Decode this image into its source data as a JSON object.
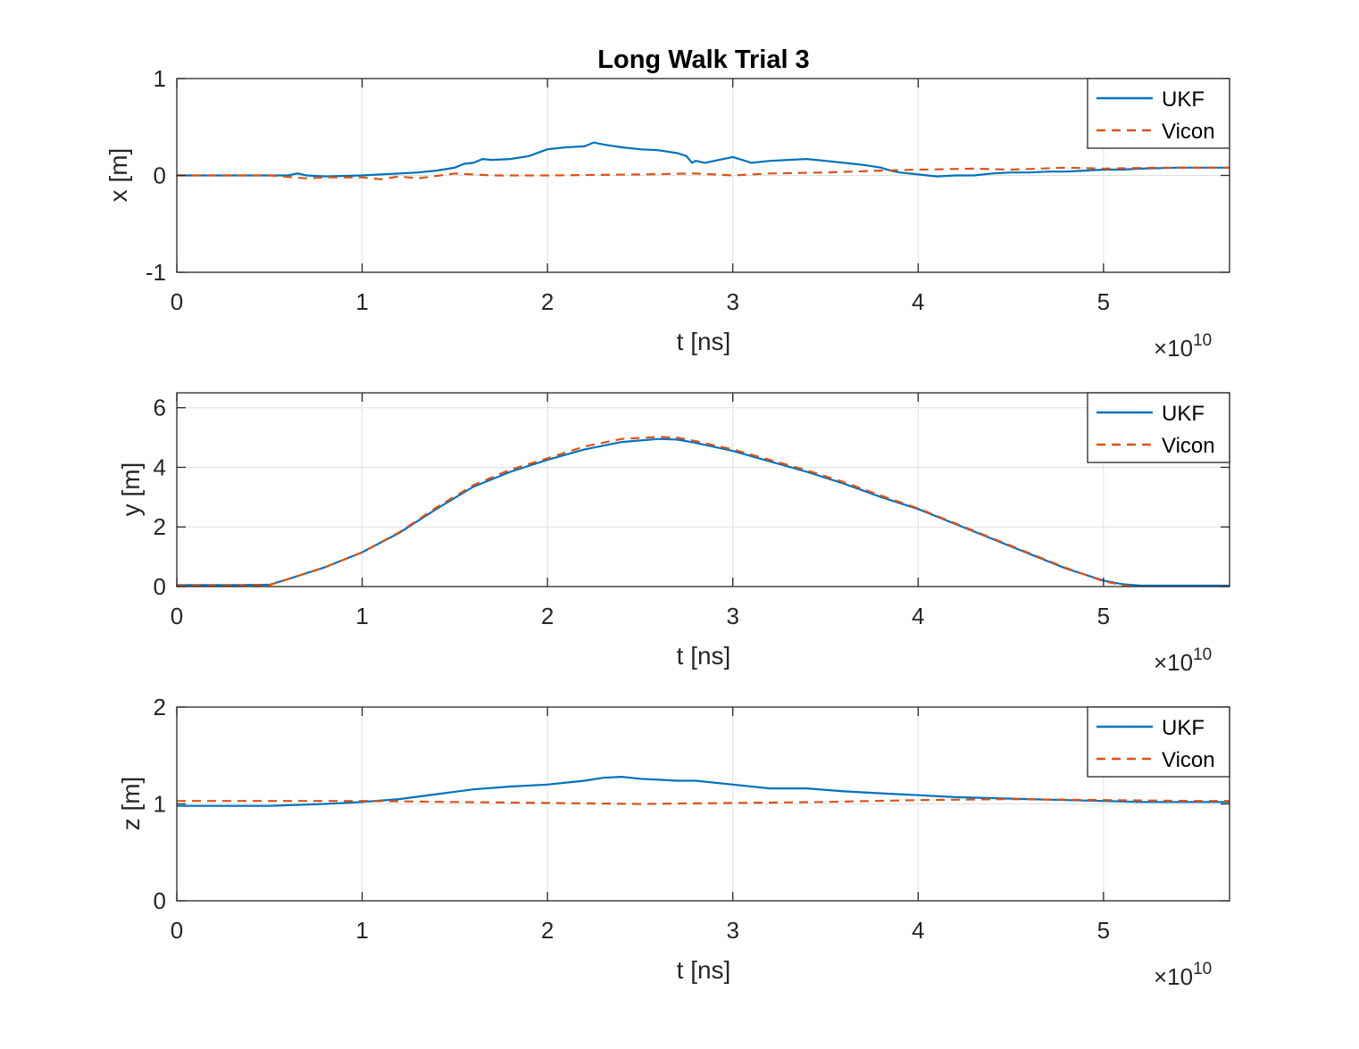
{
  "chart_data": [
    {
      "type": "line",
      "title": "Long Walk Trial 3",
      "xlabel": "t [ns]",
      "ylabel": "x [m]",
      "x_exponent": "×10",
      "x_exponent_power": "10",
      "xlim": [
        0,
        5.68
      ],
      "ylim": [
        -1,
        1
      ],
      "x_tick_values": [
        0,
        1,
        2,
        3,
        4,
        5
      ],
      "x_tick_labels": [
        "0",
        "1",
        "2",
        "3",
        "4",
        "5"
      ],
      "y_tick_values": [
        -1,
        0,
        1
      ],
      "y_tick_labels": [
        "-1",
        "0",
        "1"
      ],
      "grid": true,
      "legend": "top-right",
      "series": [
        {
          "name": "UKF",
          "color": "#0072BD",
          "style": "solid",
          "x": [
            0,
            0.3,
            0.6,
            0.65,
            0.7,
            0.8,
            1.0,
            1.1,
            1.2,
            1.3,
            1.4,
            1.5,
            1.55,
            1.6,
            1.65,
            1.7,
            1.8,
            1.9,
            2.0,
            2.1,
            2.2,
            2.25,
            2.3,
            2.4,
            2.5,
            2.6,
            2.7,
            2.75,
            2.78,
            2.8,
            2.85,
            2.9,
            2.95,
            3.0,
            3.05,
            3.1,
            3.2,
            3.3,
            3.4,
            3.5,
            3.6,
            3.7,
            3.8,
            3.85,
            3.9,
            4.0,
            4.1,
            4.2,
            4.3,
            4.4,
            4.5,
            4.6,
            4.7,
            4.8,
            4.9,
            5.0,
            5.1,
            5.2,
            5.4,
            5.68
          ],
          "y": [
            0.0,
            0.0,
            0.0,
            0.02,
            0.0,
            -0.01,
            0.0,
            0.01,
            0.02,
            0.03,
            0.05,
            0.08,
            0.12,
            0.13,
            0.17,
            0.16,
            0.17,
            0.2,
            0.27,
            0.29,
            0.3,
            0.34,
            0.32,
            0.29,
            0.27,
            0.26,
            0.23,
            0.2,
            0.13,
            0.15,
            0.13,
            0.15,
            0.17,
            0.19,
            0.16,
            0.13,
            0.15,
            0.16,
            0.17,
            0.15,
            0.13,
            0.11,
            0.08,
            0.05,
            0.03,
            0.01,
            -0.01,
            0.0,
            0.0,
            0.02,
            0.03,
            0.03,
            0.04,
            0.04,
            0.05,
            0.06,
            0.06,
            0.07,
            0.08,
            0.08
          ]
        },
        {
          "name": "Vicon",
          "color": "#D95319",
          "style": "dashed",
          "x": [
            0,
            0.5,
            0.7,
            0.8,
            1.0,
            1.1,
            1.2,
            1.3,
            1.5,
            1.7,
            2.0,
            2.5,
            2.8,
            3.0,
            3.2,
            3.5,
            3.8,
            4.0,
            4.3,
            4.5,
            4.8,
            5.0,
            5.3,
            5.68
          ],
          "y": [
            0.0,
            0.0,
            -0.03,
            -0.02,
            -0.02,
            -0.04,
            -0.01,
            -0.03,
            0.02,
            0.0,
            0.0,
            0.01,
            0.02,
            0.0,
            0.02,
            0.03,
            0.05,
            0.06,
            0.07,
            0.06,
            0.08,
            0.07,
            0.08,
            0.08
          ]
        }
      ]
    },
    {
      "type": "line",
      "title": "",
      "xlabel": "t [ns]",
      "ylabel": "y [m]",
      "x_exponent": "×10",
      "x_exponent_power": "10",
      "xlim": [
        0,
        5.68
      ],
      "ylim": [
        0,
        6.5
      ],
      "x_tick_values": [
        0,
        1,
        2,
        3,
        4,
        5
      ],
      "x_tick_labels": [
        "0",
        "1",
        "2",
        "3",
        "4",
        "5"
      ],
      "y_tick_values": [
        0,
        2,
        4,
        6
      ],
      "y_tick_labels": [
        "0",
        "2",
        "4",
        "6"
      ],
      "grid": true,
      "legend": "top-right",
      "series": [
        {
          "name": "UKF",
          "color": "#0072BD",
          "style": "solid",
          "x": [
            0,
            0.3,
            0.5,
            0.6,
            0.8,
            1.0,
            1.2,
            1.4,
            1.6,
            1.8,
            2.0,
            2.2,
            2.4,
            2.6,
            2.7,
            2.8,
            3.0,
            3.2,
            3.4,
            3.6,
            3.8,
            4.0,
            4.2,
            4.4,
            4.6,
            4.8,
            5.0,
            5.1,
            5.2,
            5.3,
            5.5,
            5.68
          ],
          "y": [
            0.05,
            0.05,
            0.06,
            0.25,
            0.65,
            1.15,
            1.8,
            2.6,
            3.35,
            3.85,
            4.25,
            4.6,
            4.85,
            4.95,
            4.93,
            4.82,
            4.55,
            4.2,
            3.85,
            3.45,
            3.0,
            2.6,
            2.1,
            1.6,
            1.1,
            0.6,
            0.2,
            0.08,
            0.03,
            0.03,
            0.03,
            0.03
          ]
        },
        {
          "name": "Vicon",
          "color": "#D95319",
          "style": "dashed",
          "x": [
            0,
            0.3,
            0.5,
            0.6,
            0.8,
            1.0,
            1.2,
            1.4,
            1.6,
            1.8,
            2.0,
            2.2,
            2.4,
            2.6,
            2.7,
            2.8,
            3.0,
            3.2,
            3.4,
            3.6,
            3.8,
            4.0,
            4.2,
            4.4,
            4.6,
            4.8,
            5.0,
            5.1,
            5.2,
            5.3,
            5.5,
            5.68
          ],
          "y": [
            0.03,
            0.03,
            0.05,
            0.25,
            0.65,
            1.15,
            1.82,
            2.65,
            3.4,
            3.92,
            4.3,
            4.7,
            4.95,
            5.02,
            5.0,
            4.88,
            4.6,
            4.25,
            3.9,
            3.5,
            3.05,
            2.62,
            2.12,
            1.62,
            1.12,
            0.62,
            0.18,
            0.05,
            -0.03,
            -0.05,
            -0.05,
            -0.05
          ]
        }
      ]
    },
    {
      "type": "line",
      "title": "",
      "xlabel": "t [ns]",
      "ylabel": "z [m]",
      "x_exponent": "×10",
      "x_exponent_power": "10",
      "xlim": [
        0,
        5.68
      ],
      "ylim": [
        0,
        2
      ],
      "x_tick_values": [
        0,
        1,
        2,
        3,
        4,
        5
      ],
      "x_tick_labels": [
        "0",
        "1",
        "2",
        "3",
        "4",
        "5"
      ],
      "y_tick_values": [
        0,
        1,
        2
      ],
      "y_tick_labels": [
        "0",
        "1",
        "2"
      ],
      "grid": true,
      "legend": "top-right",
      "series": [
        {
          "name": "UKF",
          "color": "#0072BD",
          "style": "solid",
          "x": [
            0,
            0.5,
            0.8,
            1.0,
            1.2,
            1.4,
            1.6,
            1.8,
            2.0,
            2.1,
            2.2,
            2.3,
            2.4,
            2.5,
            2.6,
            2.7,
            2.8,
            3.0,
            3.2,
            3.4,
            3.6,
            3.8,
            4.0,
            4.2,
            4.4,
            4.6,
            4.8,
            5.0,
            5.2,
            5.4,
            5.68
          ],
          "y": [
            0.98,
            0.98,
            1.0,
            1.02,
            1.05,
            1.1,
            1.15,
            1.18,
            1.2,
            1.22,
            1.24,
            1.27,
            1.28,
            1.26,
            1.25,
            1.24,
            1.24,
            1.2,
            1.16,
            1.16,
            1.13,
            1.11,
            1.09,
            1.07,
            1.06,
            1.05,
            1.04,
            1.03,
            1.02,
            1.02,
            1.02
          ]
        },
        {
          "name": "Vicon",
          "color": "#D95319",
          "style": "dashed",
          "x": [
            0,
            0.5,
            1.0,
            1.5,
            2.0,
            2.5,
            3.0,
            3.5,
            4.0,
            4.5,
            5.0,
            5.5,
            5.68
          ],
          "y": [
            1.03,
            1.03,
            1.03,
            1.02,
            1.01,
            1.0,
            1.01,
            1.02,
            1.04,
            1.05,
            1.04,
            1.03,
            1.03
          ]
        }
      ]
    }
  ]
}
